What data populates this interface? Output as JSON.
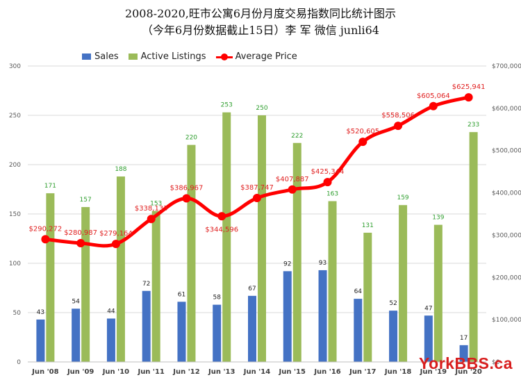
{
  "titles": {
    "line1": "2008-2020,旺市公寓6月份月度交易指数同比统计图示",
    "line2": "（今年6月份数据截止15日）李 军 微信 junli64"
  },
  "legend": {
    "sales": "Sales",
    "listings": "Active Listings",
    "price": "Average Price"
  },
  "watermark": "YorkBBS.ca",
  "colors": {
    "sales": "#4472c4",
    "listings": "#9bbb59",
    "price": "#ff0000",
    "price_label": "#e02020",
    "listings_label": "#2e9e2e",
    "sales_label": "#222222",
    "grid": "#d9d9d9",
    "axis_text": "#595959"
  },
  "chart_data": {
    "type": "bar",
    "categories": [
      "Jun '08",
      "Jun '09",
      "Jun '10",
      "Jun '11",
      "Jun '12",
      "Jun '13",
      "Jun '14",
      "Jun '15",
      "Jun '16",
      "Jun '17",
      "Jun '18",
      "Jun '19",
      "Jun '20"
    ],
    "series": [
      {
        "name": "Sales",
        "type": "bar",
        "axis": "left",
        "values": [
          43,
          54,
          44,
          72,
          61,
          58,
          67,
          92,
          93,
          64,
          52,
          47,
          17
        ]
      },
      {
        "name": "Active Listings",
        "type": "bar",
        "axis": "left",
        "values": [
          171,
          157,
          188,
          153,
          220,
          253,
          250,
          222,
          163,
          131,
          159,
          139,
          233
        ]
      },
      {
        "name": "Average Price",
        "type": "line",
        "axis": "right",
        "values": [
          290272,
          280987,
          279164,
          338133,
          386967,
          344596,
          387747,
          407887,
          425344,
          520605,
          558506,
          605064,
          625941
        ]
      }
    ],
    "price_labels": [
      "$290,272",
      "$280,987",
      "$279,164",
      "$338,133",
      "$386,967",
      "$344,596",
      "$387,747",
      "$407,887",
      "$425,344",
      "$520,605",
      "$558,506",
      "$605,064",
      "$625,941"
    ],
    "ylim": [
      0,
      300
    ],
    "yticks": [
      "0",
      "50",
      "100",
      "150",
      "200",
      "250",
      "300"
    ],
    "y2lim": [
      0,
      700000
    ],
    "y2ticks": [
      "$0",
      "$100,000",
      "$200,000",
      "$300,000",
      "$400,000",
      "$500,000",
      "$600,000",
      "$700,000"
    ],
    "grid": true,
    "legend_position": "top-left"
  }
}
